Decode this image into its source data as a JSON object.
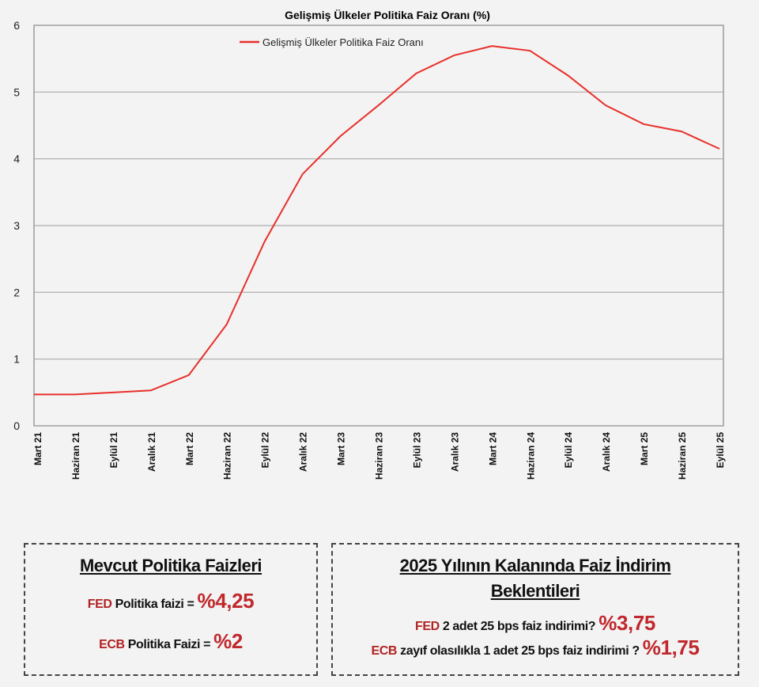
{
  "chart_data": {
    "type": "line",
    "title": "Gelişmiş Ülkeler Politika Faiz Oranı (%)",
    "xlabel": "",
    "ylabel": "",
    "ylim": [
      0,
      6
    ],
    "yticks": [
      "0",
      "1",
      "2",
      "3",
      "4",
      "5",
      "6"
    ],
    "grid": true,
    "legend_position": "top-center",
    "categories": [
      "Mart 21",
      "Haziran 21",
      "Eylül 21",
      "Aralık 21",
      "Mart 22",
      "Haziran 22",
      "Eylül 22",
      "Aralık 22",
      "Mart 23",
      "Haziran 23",
      "Eylül 23",
      "Aralık 23",
      "Mart 24",
      "Haziran 24",
      "Eylül 24",
      "Aralık 24",
      "Mart 25",
      "Haziran 25",
      "Eylül 25"
    ],
    "series": [
      {
        "name": "Gelişmiş Ülkeler Politika Faiz Oranı",
        "color": "#e8302a",
        "values": [
          0.47,
          0.47,
          0.5,
          0.53,
          0.76,
          1.52,
          2.76,
          3.77,
          4.34,
          4.8,
          5.28,
          5.55,
          5.69,
          5.62,
          5.25,
          4.8,
          4.52,
          4.41,
          4.15
        ]
      }
    ]
  },
  "current_box": {
    "title": "Mevcut Politika Faizleri",
    "fed_label": "FED",
    "fed_text": "Politika faizi =",
    "fed_value": "%4,25",
    "ecb_label": "ECB",
    "ecb_text": "Politika Faizi =",
    "ecb_value": "%2"
  },
  "expect_box": {
    "title_line1": "2025 Yılının Kalanında Faiz İndirim",
    "title_line2": "Beklentileri",
    "fed_label": "FED",
    "fed_text": "2 adet 25 bps faiz indirimi?",
    "fed_value": "%3,75",
    "ecb_label": "ECB",
    "ecb_text": "zayıf olasılıkla 1 adet 25 bps faiz indirimi ?",
    "ecb_value": "%1,75"
  }
}
